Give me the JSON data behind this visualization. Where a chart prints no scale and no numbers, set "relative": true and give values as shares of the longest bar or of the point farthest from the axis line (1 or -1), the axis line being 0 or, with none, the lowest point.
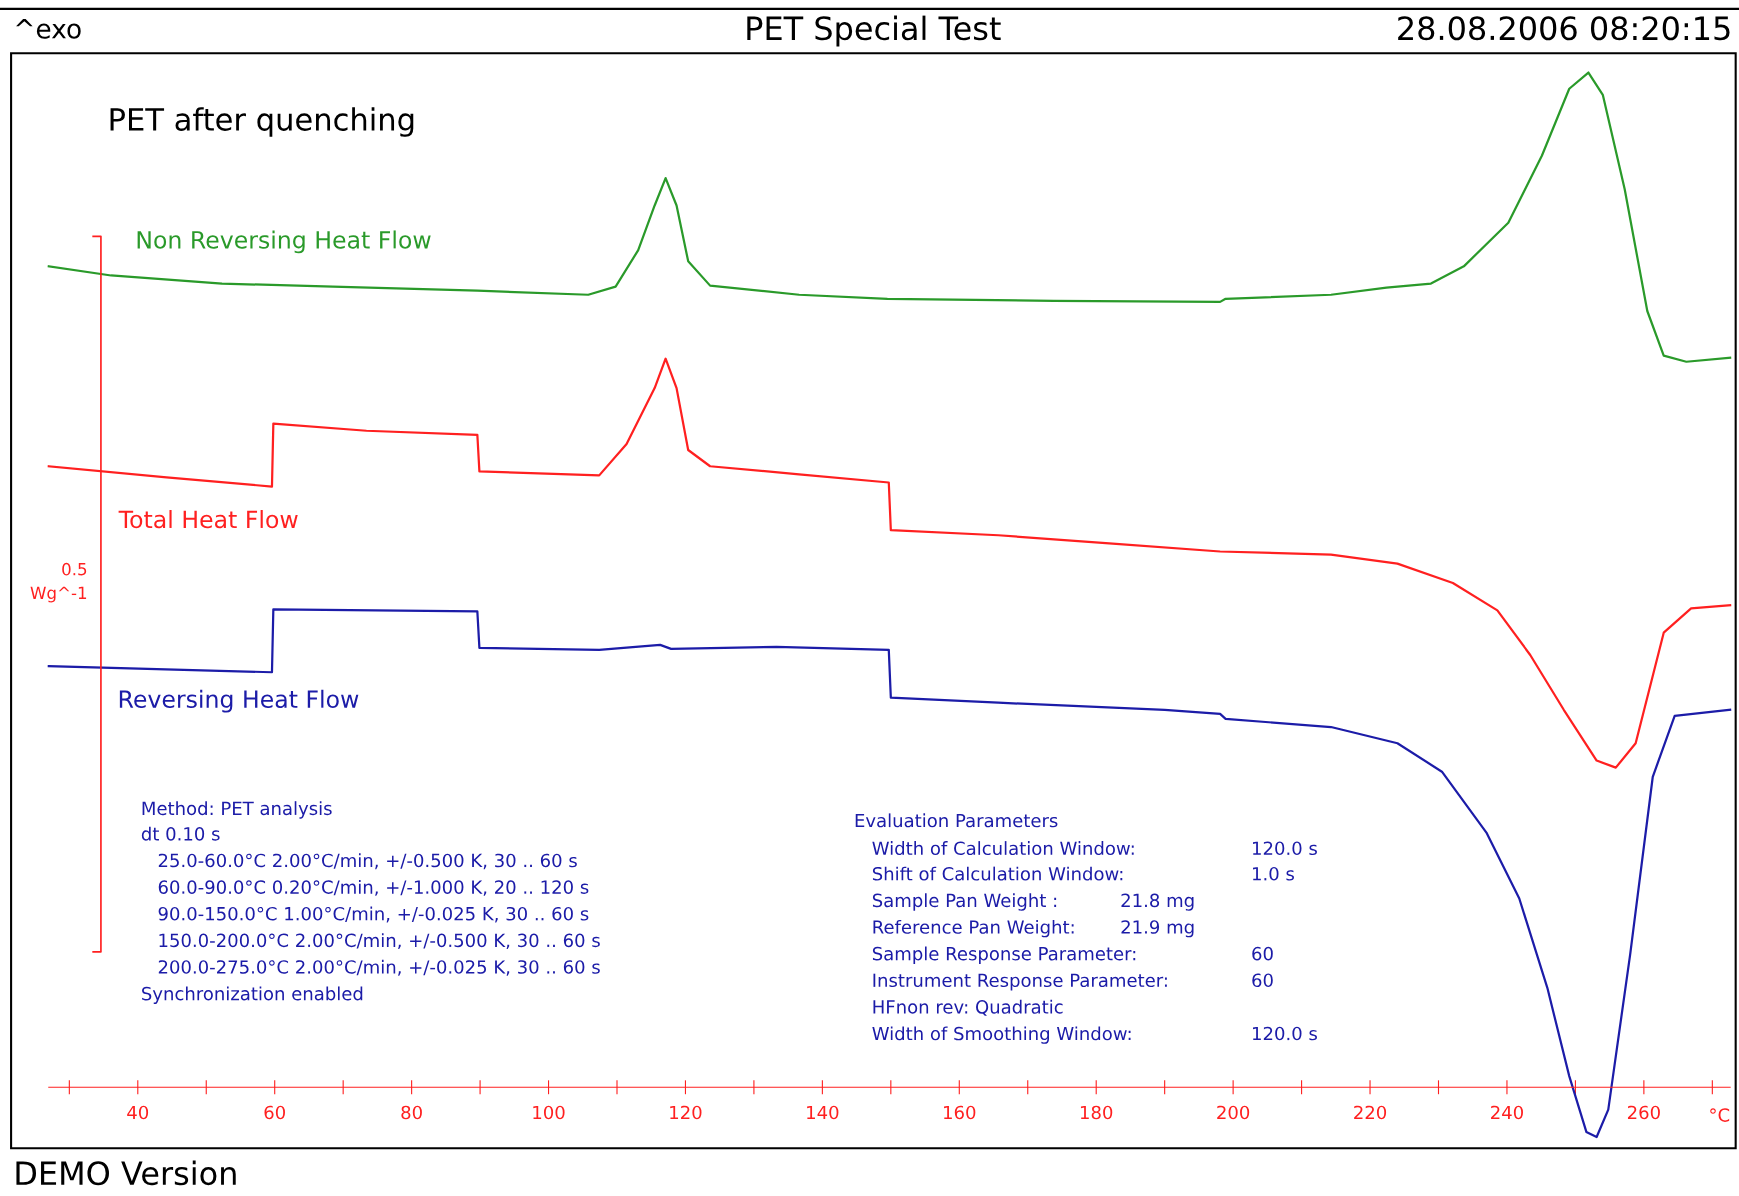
{
  "chart_data": {
    "type": "line",
    "title": "PET Special Test",
    "subtitle": "PET after quenching",
    "xlabel": "°C",
    "relative": true,
    "legend": false,
    "grid": false,
    "marker": "none",
    "line_style": "solid",
    "xlim": [
      27,
      272.6
    ],
    "xticks": [
      {
        "value": 30,
        "label": null
      },
      40,
      {
        "value": 50,
        "label": null
      },
      60,
      {
        "value": 70,
        "label": null
      },
      80,
      {
        "value": 90,
        "label": null
      },
      100,
      {
        "value": 110,
        "label": null
      },
      120,
      {
        "value": 130,
        "label": null
      },
      140,
      {
        "value": 150,
        "label": null
      },
      160,
      {
        "value": 170,
        "label": null
      },
      180,
      {
        "value": 190,
        "label": null
      },
      200,
      {
        "value": 210,
        "label": null
      },
      220,
      {
        "value": 230,
        "label": null
      },
      240,
      {
        "value": 250,
        "label": null
      },
      260,
      {
        "value": 270,
        "label": null
      }
    ],
    "series": [
      {
        "name": "Non Reversing Heat Flow",
        "color": "#2a9a2a",
        "x": [
          27.0,
          36.1,
          52.3,
          68.5,
          89.6,
          105.8,
          109.8,
          113.1,
          115.5,
          117.1,
          118.7,
          120.4,
          123.6,
          136.6,
          149.5,
          173.8,
          198.1,
          198.9,
          214.3,
          222.4,
          228.9,
          233.7,
          240.2,
          245.1,
          249.1,
          251.9,
          254.0,
          257.2,
          260.5,
          262.9,
          266.2,
          272.6
        ],
        "values": [
          0.809,
          0.8,
          0.792,
          0.789,
          0.785,
          0.781,
          0.789,
          0.825,
          0.869,
          0.896,
          0.869,
          0.814,
          0.79,
          0.781,
          0.777,
          0.775,
          0.774,
          0.777,
          0.781,
          0.788,
          0.792,
          0.809,
          0.852,
          0.918,
          0.984,
          1.0,
          0.978,
          0.885,
          0.765,
          0.721,
          0.715,
          0.719
        ]
      },
      {
        "name": "Total Heat Flow",
        "color": "#ff2020",
        "x": [
          27.0,
          44.2,
          59.6,
          59.8,
          73.4,
          89.6,
          89.9,
          107.4,
          111.4,
          115.5,
          117.1,
          118.7,
          120.4,
          123.6,
          136.6,
          149.7,
          150.0,
          165.7,
          181.9,
          198.1,
          214.3,
          224.0,
          232.1,
          238.6,
          243.4,
          248.3,
          253.1,
          255.9,
          258.8,
          262.9,
          266.9,
          272.6
        ],
        "values": [
          0.612,
          0.601,
          0.592,
          0.654,
          0.647,
          0.643,
          0.607,
          0.603,
          0.634,
          0.689,
          0.718,
          0.689,
          0.628,
          0.612,
          0.604,
          0.596,
          0.549,
          0.544,
          0.536,
          0.528,
          0.525,
          0.516,
          0.497,
          0.47,
          0.426,
          0.372,
          0.322,
          0.315,
          0.339,
          0.448,
          0.472,
          0.475
        ]
      },
      {
        "name": "Reversing Heat Flow",
        "color": "#1c1ca8",
        "x": [
          27.0,
          59.6,
          59.8,
          89.6,
          89.9,
          107.4,
          116.3,
          117.9,
          133.3,
          149.7,
          150.0,
          165.7,
          190.0,
          198.1,
          198.9,
          214.3,
          224.0,
          230.5,
          237.0,
          241.8,
          245.9,
          249.1,
          251.6,
          253.1,
          254.8,
          258.0,
          261.3,
          264.5,
          272.6
        ],
        "values": [
          0.415,
          0.409,
          0.471,
          0.469,
          0.433,
          0.431,
          0.436,
          0.432,
          0.434,
          0.431,
          0.384,
          0.379,
          0.372,
          0.368,
          0.363,
          0.355,
          0.339,
          0.311,
          0.251,
          0.186,
          0.098,
          0.011,
          -0.044,
          -0.049,
          -0.022,
          0.131,
          0.306,
          0.366,
          0.372
        ]
      }
    ],
    "annotations": [
      "^exo",
      "28.08.2006 08:20:15",
      "DEMO Version",
      "Method: PET analysis",
      "dt 0.10 s",
      "25.0-60.0°C 2.00°C/min, +/-0.500 K, 30 .. 60 s",
      "60.0-90.0°C 0.20°C/min, +/-1.000 K, 20 .. 120 s",
      "90.0-150.0°C 1.00°C/min, +/-0.025 K, 30 .. 60 s",
      "150.0-200.0°C 2.00°C/min, +/-0.500 K, 30 .. 60 s",
      "200.0-275.0°C 2.00°C/min, +/-0.025 K, 30 .. 60 s",
      "Synchronization enabled",
      "Evaluation Parameters",
      "Width of Calculation Window:",
      "120.0 s",
      "Shift of Calculation Window:",
      "1.0 s",
      "Sample Pan Weight :",
      "21.8 mg",
      "Reference Pan Weight:",
      "21.9 mg",
      "Sample Response Parameter:",
      "60",
      "Instrument Response Parameter:",
      "60",
      "HFnon rev: Quadratic",
      "Width of Smoothing Window:",
      "120.0 s",
      "0.5\nWg^-1"
    ]
  }
}
